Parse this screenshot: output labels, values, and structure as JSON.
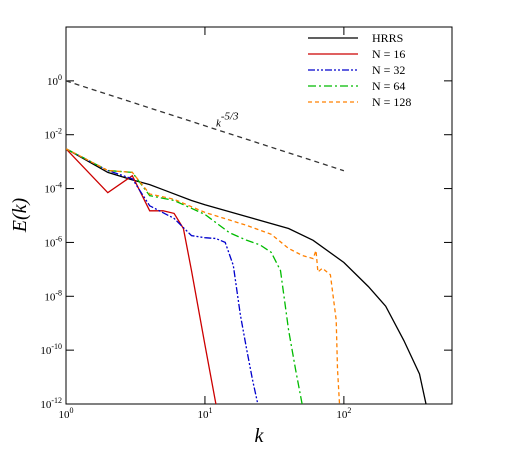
{
  "chart_data": {
    "type": "line",
    "x_label": "k",
    "y_label": "E(k)",
    "log_x": true,
    "log_y": true,
    "xlim": [
      1,
      600
    ],
    "ylim": [
      1e-12,
      100
    ],
    "xticks": [
      {
        "value": 1,
        "label": "10",
        "sup": "0"
      },
      {
        "value": 10,
        "label": "10",
        "sup": "1"
      },
      {
        "value": 100,
        "label": "10",
        "sup": "2"
      }
    ],
    "yticks": [
      {
        "value": 1e-12,
        "label": "10",
        "sup": "-12"
      },
      {
        "value": 1e-10,
        "label": "10",
        "sup": "-10"
      },
      {
        "value": 1e-08,
        "label": "10",
        "sup": "-8"
      },
      {
        "value": 1e-06,
        "label": "10",
        "sup": "-6"
      },
      {
        "value": 0.0001,
        "label": "10",
        "sup": "-4"
      },
      {
        "value": 0.01,
        "label": "10",
        "sup": "-2"
      },
      {
        "value": 1,
        "label": "10",
        "sup": "0"
      }
    ],
    "legend": "top-right",
    "reference_line": {
      "x": [
        1,
        100
      ],
      "values": [
        1,
        0.00046
      ],
      "color": "#333333",
      "dash": "5,4",
      "label": "k",
      "label_sup": "-5/3",
      "label_x": 12,
      "label_y": 0.02
    },
    "series": [
      {
        "name": "HRRS",
        "color": "#000000",
        "dash": "none",
        "x": [
          1,
          2,
          3,
          4,
          5,
          8,
          10,
          20,
          40,
          60,
          100,
          150,
          200,
          270,
          350,
          390
        ],
        "values": [
          0.003,
          0.0004,
          0.00021,
          0.00014,
          9.1e-05,
          3.6e-05,
          2.5e-05,
          9.1e-06,
          3.3e-06,
          1.2e-06,
          1.8e-07,
          2.3e-08,
          4.3e-09,
          2.3e-10,
          1.3e-11,
          1e-12
        ]
      },
      {
        "name": "N = 16",
        "color": "#cc0000",
        "dash": "none",
        "x": [
          1,
          2,
          3,
          4,
          5,
          6,
          7,
          8,
          10,
          12
        ],
        "values": [
          0.003,
          7e-05,
          0.0003,
          1.5e-05,
          1.5e-05,
          1.2e-05,
          3.3e-06,
          9e-08,
          1.6e-10,
          1e-12
        ]
      },
      {
        "name": "N = 32",
        "color": "#0000cc",
        "dash": "7,2,2,2,2,2",
        "x": [
          1,
          2,
          3,
          4,
          6,
          8,
          10,
          12,
          14,
          16,
          18,
          20,
          22,
          24
        ],
        "values": [
          0.003,
          0.00047,
          0.00023,
          2.3e-05,
          7.8e-06,
          1.8e-06,
          1.5e-06,
          1.4e-06,
          1e-06,
          1.4e-07,
          2e-09,
          1e-10,
          8e-12,
          1e-12
        ]
      },
      {
        "name": "N = 64",
        "color": "#00bb00",
        "dash": "8,3,2,3",
        "x": [
          1,
          2,
          3,
          4,
          6,
          10,
          15,
          20,
          25,
          30,
          35,
          40,
          45,
          50
        ],
        "values": [
          0.003,
          0.00047,
          0.0004,
          5.5e-05,
          3.6e-05,
          1.1e-05,
          2.3e-06,
          1.2e-06,
          8e-07,
          4.3e-07,
          9e-08,
          5.5e-10,
          1.8e-11,
          1e-12
        ]
      },
      {
        "name": "N = 128",
        "color": "#ff8000",
        "dash": "4,3",
        "x": [
          1,
          2,
          3,
          4,
          6,
          10,
          20,
          30,
          40,
          50,
          60,
          63,
          65,
          70,
          80,
          88,
          90,
          93
        ],
        "values": [
          0.003,
          0.00047,
          0.0004,
          6.3e-05,
          4e-05,
          1.3e-05,
          4.3e-06,
          2e-06,
          6e-07,
          3.3e-07,
          2.5e-07,
          5e-07,
          8e-08,
          1.1e-07,
          6.3e-08,
          1.3e-09,
          2e-11,
          1e-12
        ]
      }
    ]
  }
}
